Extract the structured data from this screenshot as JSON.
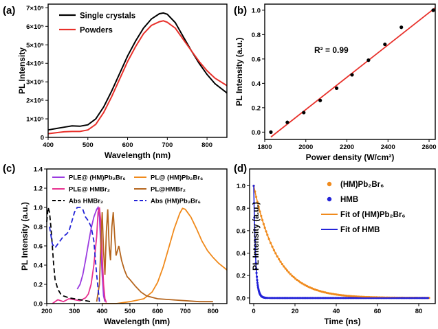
{
  "chart_data": [
    {
      "panel": "(a)",
      "type": "line",
      "xlabel": "Wavelength (nm)",
      "ylabel": "PL Intensity",
      "xlim": [
        400,
        850
      ],
      "ylim": [
        0,
        720000
      ],
      "x_ticks": [
        "400",
        "500",
        "600",
        "700",
        "800"
      ],
      "y_ticks": [
        "0",
        "1×10⁵",
        "2×10⁵",
        "3×10⁵",
        "4×10⁵",
        "5×10⁵",
        "6×10⁵",
        "7×10⁵"
      ],
      "legend": "top-left",
      "series": [
        {
          "name": "Single crystals",
          "color": "#000000",
          "x": [
            400,
            420,
            440,
            460,
            480,
            500,
            520,
            540,
            560,
            580,
            600,
            620,
            640,
            660,
            680,
            690,
            700,
            720,
            740,
            760,
            780,
            800,
            820,
            850
          ],
          "y": [
            40000,
            48000,
            55000,
            62000,
            60000,
            68000,
            100000,
            165000,
            250000,
            345000,
            440000,
            520000,
            590000,
            640000,
            668000,
            672000,
            665000,
            620000,
            545000,
            470000,
            400000,
            340000,
            290000,
            240000
          ]
        },
        {
          "name": "Powders",
          "color": "#e8302a",
          "x": [
            400,
            420,
            440,
            460,
            480,
            500,
            520,
            540,
            560,
            580,
            600,
            620,
            640,
            660,
            680,
            690,
            700,
            720,
            740,
            760,
            780,
            800,
            820,
            850
          ],
          "y": [
            20000,
            25000,
            30000,
            32000,
            32000,
            40000,
            70000,
            135000,
            220000,
            315000,
            410000,
            490000,
            560000,
            605000,
            625000,
            630000,
            622000,
            590000,
            530000,
            470000,
            410000,
            360000,
            320000,
            280000
          ]
        }
      ]
    },
    {
      "panel": "(b)",
      "type": "scatter",
      "xlabel": "Power density (W/cm²)",
      "ylabel": "PL Intensity (a.u.)",
      "xlim": [
        1800,
        2630
      ],
      "ylim": [
        -0.06,
        1.05
      ],
      "x_ticks": [
        "1800",
        "2000",
        "2200",
        "2400",
        "2600"
      ],
      "y_ticks": [
        "0.0",
        "0.2",
        "0.4",
        "0.6",
        "0.8",
        "1.0"
      ],
      "annotation": "R² = 0.99",
      "points": {
        "x": [
          1830,
          1910,
          1990,
          2070,
          2150,
          2225,
          2305,
          2385,
          2465,
          2620
        ],
        "y": [
          0.0,
          0.08,
          0.16,
          0.26,
          0.36,
          0.47,
          0.59,
          0.72,
          0.86,
          1.0
        ]
      },
      "fit": {
        "color": "#e8302a",
        "x": [
          1830,
          2630
        ],
        "y": [
          -0.04,
          1.02
        ]
      }
    },
    {
      "panel": "(c)",
      "type": "line",
      "xlabel": "Wavelength (nm)",
      "ylabel": "PL Intensity (a.u.)",
      "xlim": [
        200,
        850
      ],
      "ylim": [
        0,
        1.4
      ],
      "x_ticks": [
        "200",
        "300",
        "400",
        "500",
        "600",
        "700",
        "800"
      ],
      "y_ticks": [
        "0.0",
        "0.2",
        "0.4",
        "0.6",
        "0.8",
        "1.0",
        "1.2",
        "1.4"
      ],
      "legend": "top, two columns",
      "series": [
        {
          "name": "PLE@ (HM)Pb₂Br₆",
          "color": "#9b3be0",
          "dash": "",
          "x": [
            310,
            320,
            330,
            340,
            350,
            360,
            370,
            380,
            385,
            390,
            395,
            400,
            405,
            410
          ],
          "y": [
            0.15,
            0.2,
            0.3,
            0.45,
            0.62,
            0.78,
            0.9,
            0.98,
            1.0,
            0.9,
            0.6,
            0.3,
            0.08,
            0.02
          ]
        },
        {
          "name": "PLE@ HMBr₂",
          "color": "#e8308f",
          "dash": "",
          "x": [
            220,
            240,
            260,
            280,
            300,
            320,
            340,
            350,
            360,
            370,
            380,
            385,
            390,
            395,
            400,
            405,
            410,
            415
          ],
          "y": [
            0.0,
            0.04,
            0.02,
            0.05,
            0.04,
            0.03,
            0.06,
            0.1,
            0.2,
            0.4,
            0.7,
            0.95,
            1.0,
            0.85,
            0.5,
            0.2,
            0.05,
            0.01
          ]
        },
        {
          "name": "Abs HMBr₂",
          "color": "#000000",
          "dash": "7,4",
          "x": [
            200,
            205,
            210,
            215,
            220,
            225,
            230,
            240,
            250,
            260,
            280,
            300,
            320,
            340,
            360
          ],
          "y": [
            0.85,
            1.0,
            0.95,
            0.8,
            0.6,
            0.4,
            0.25,
            0.15,
            0.1,
            0.08,
            0.06,
            0.05,
            0.04,
            0.03,
            0.02
          ]
        },
        {
          "name": "PL@ (HM)Pb₂Br₆",
          "color": "#f08a1c",
          "dash": "",
          "x": [
            400,
            450,
            500,
            550,
            580,
            600,
            620,
            640,
            660,
            680,
            690,
            700,
            720,
            740,
            760,
            780,
            800,
            820,
            850
          ],
          "y": [
            0.0,
            0.0,
            0.02,
            0.05,
            0.12,
            0.22,
            0.38,
            0.58,
            0.78,
            0.94,
            0.99,
            0.98,
            0.9,
            0.78,
            0.65,
            0.55,
            0.48,
            0.42,
            0.35
          ]
        },
        {
          "name": "PL@HMBr₂",
          "color": "#b5651d",
          "dash": "",
          "x": [
            380,
            390,
            395,
            400,
            405,
            410,
            415,
            420,
            425,
            430,
            435,
            440,
            445,
            450,
            455,
            460,
            470,
            480,
            490,
            500,
            520,
            540,
            560,
            600,
            650,
            700,
            750,
            800
          ],
          "y": [
            0.02,
            0.2,
            0.6,
            0.95,
            0.55,
            0.3,
            0.75,
            0.98,
            0.6,
            0.45,
            0.8,
            0.95,
            0.7,
            0.5,
            0.55,
            0.6,
            0.45,
            0.35,
            0.28,
            0.25,
            0.18,
            0.12,
            0.08,
            0.05,
            0.04,
            0.03,
            0.02,
            0.02
          ]
        },
        {
          "name": "Abs (HM)Pb₂Br₆",
          "color": "#2323d8",
          "dash": "7,4",
          "x": [
            210,
            220,
            230,
            240,
            250,
            260,
            270,
            280,
            290,
            300,
            310,
            320,
            330,
            340,
            350,
            360,
            370,
            380,
            390
          ],
          "y": [
            0.8,
            0.62,
            0.58,
            0.62,
            0.66,
            0.7,
            0.72,
            0.75,
            0.85,
            0.95,
            1.0,
            1.0,
            0.98,
            0.9,
            0.86,
            0.8,
            0.65,
            0.3,
            0.02
          ]
        }
      ]
    },
    {
      "panel": "(d)",
      "type": "line",
      "xlabel": "Time (ns)",
      "ylabel": "PL Intensity (a.u.)",
      "xlim": [
        -2,
        88
      ],
      "ylim": [
        -0.05,
        1.15
      ],
      "x_ticks": [
        "0",
        "20",
        "40",
        "60",
        "80"
      ],
      "y_ticks": [
        "0.0",
        "0.2",
        "0.4",
        "0.6",
        "0.8",
        "1.0"
      ],
      "legend": "top-right",
      "series": [
        {
          "name": "(HM)Pb₂Br₆",
          "color": "#f08a1c",
          "style": "markers",
          "tau": 11.5,
          "x_range": [
            0,
            85
          ]
        },
        {
          "name": "HMB",
          "color": "#2323d8",
          "style": "markers",
          "tau": 0.9,
          "x_range": [
            0,
            85
          ]
        },
        {
          "name": "Fit of  (HM)Pb₂Br₆",
          "color": "#f08a1c",
          "style": "line",
          "tau": 11.5,
          "x_range": [
            0,
            85
          ]
        },
        {
          "name": "Fit of  HMB",
          "color": "#2323d8",
          "style": "line",
          "tau": 0.9,
          "x_range": [
            0,
            85
          ]
        }
      ]
    }
  ]
}
